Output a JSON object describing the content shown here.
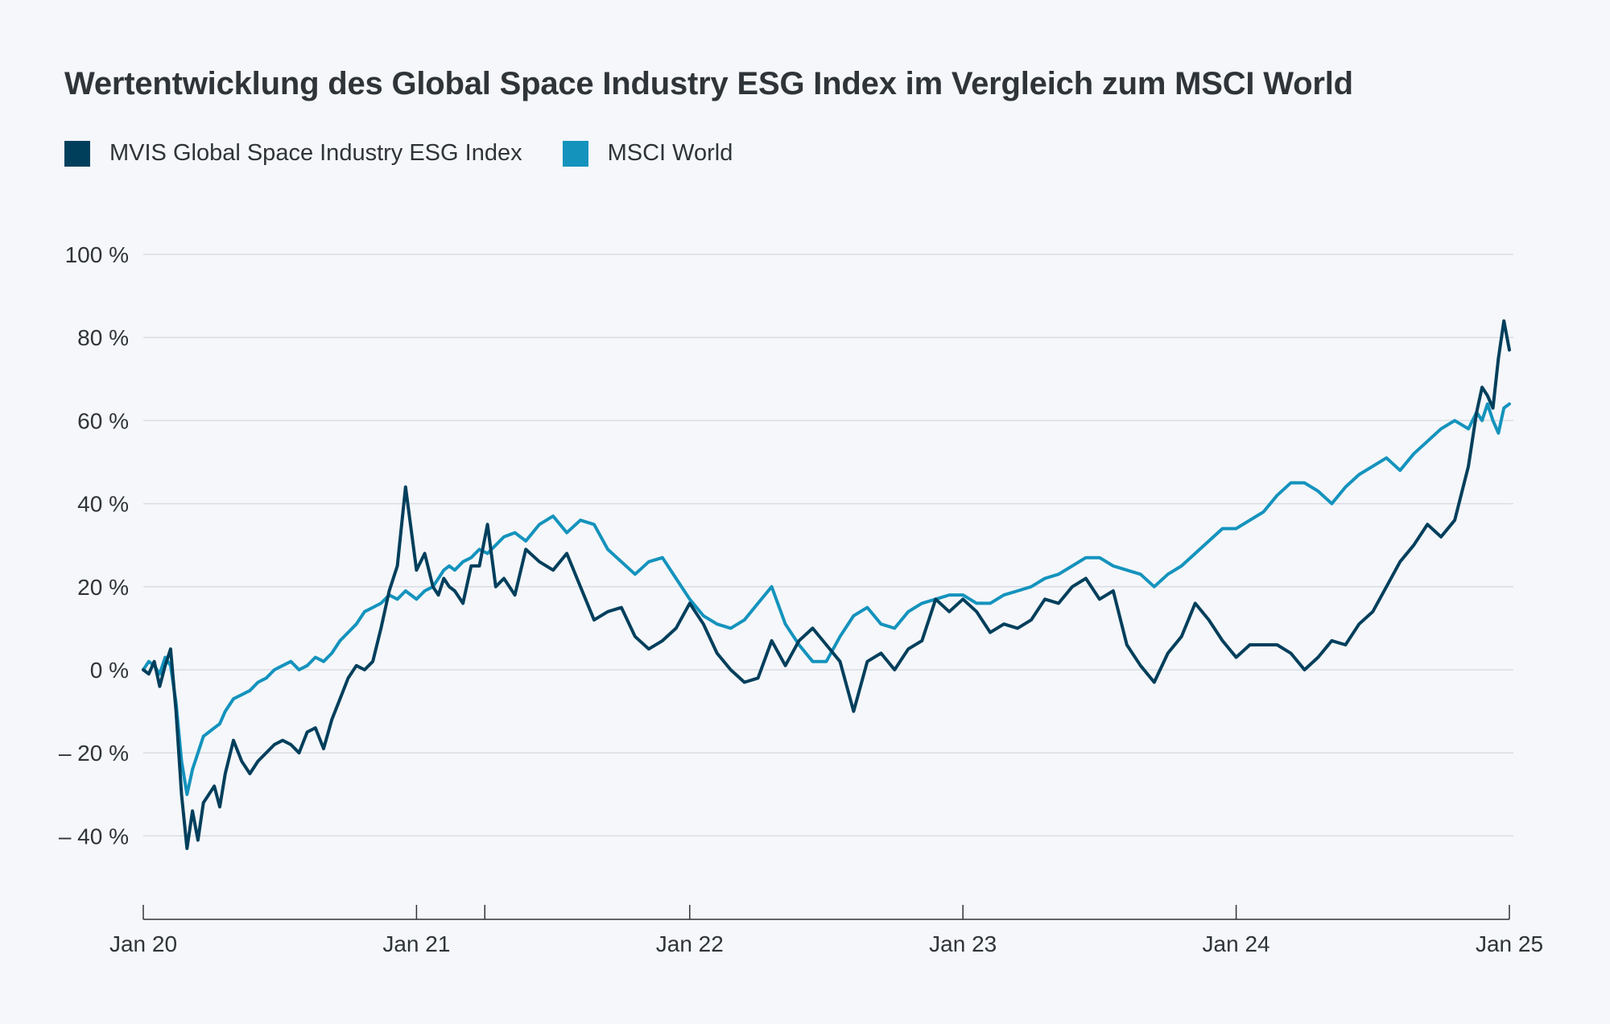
{
  "chart_data": {
    "type": "line",
    "title": "Wertentwicklung des Global Space Industry ESG Index im Vergleich zum MSCI World",
    "xlabel": "",
    "ylabel": "",
    "x_ticks": [
      "Jan 20",
      "Jan 21",
      "Jan 22",
      "Jan 23",
      "Jan 24",
      "Jan 25"
    ],
    "x_range": [
      2020.0,
      2025.0
    ],
    "y_ticks": [
      "100 %",
      "80 %",
      "60 %",
      "40 %",
      "20 %",
      "0 %",
      "– 20 %",
      "– 40 %"
    ],
    "y_tick_values": [
      100,
      80,
      60,
      40,
      20,
      0,
      -20,
      -40
    ],
    "ylim": [
      -58,
      100
    ],
    "grid": true,
    "legend_position": "top-left",
    "series": [
      {
        "name": "MVIS Global Space Industry ESG Index",
        "color": "#003f5c",
        "x": [
          2020.0,
          2020.02,
          2020.04,
          2020.06,
          2020.08,
          2020.1,
          2020.12,
          2020.14,
          2020.16,
          2020.18,
          2020.2,
          2020.22,
          2020.24,
          2020.26,
          2020.28,
          2020.3,
          2020.33,
          2020.36,
          2020.39,
          2020.42,
          2020.45,
          2020.48,
          2020.51,
          2020.54,
          2020.57,
          2020.6,
          2020.63,
          2020.66,
          2020.69,
          2020.72,
          2020.75,
          2020.78,
          2020.81,
          2020.84,
          2020.87,
          2020.9,
          2020.93,
          2020.96,
          2021.0,
          2021.03,
          2021.06,
          2021.08,
          2021.1,
          2021.12,
          2021.14,
          2021.17,
          2021.2,
          2021.23,
          2021.26,
          2021.29,
          2021.32,
          2021.36,
          2021.4,
          2021.45,
          2021.5,
          2021.55,
          2021.6,
          2021.65,
          2021.7,
          2021.75,
          2021.8,
          2021.85,
          2021.9,
          2021.95,
          2022.0,
          2022.05,
          2022.1,
          2022.15,
          2022.2,
          2022.25,
          2022.3,
          2022.35,
          2022.4,
          2022.45,
          2022.5,
          2022.55,
          2022.6,
          2022.65,
          2022.7,
          2022.75,
          2022.8,
          2022.85,
          2022.9,
          2022.95,
          2023.0,
          2023.05,
          2023.1,
          2023.15,
          2023.2,
          2023.25,
          2023.3,
          2023.35,
          2023.4,
          2023.45,
          2023.5,
          2023.55,
          2023.6,
          2023.65,
          2023.7,
          2023.75,
          2023.8,
          2023.85,
          2023.9,
          2023.95,
          2024.0,
          2024.05,
          2024.1,
          2024.15,
          2024.2,
          2024.25,
          2024.3,
          2024.35,
          2024.4,
          2024.45,
          2024.5,
          2024.55,
          2024.6,
          2024.65,
          2024.7,
          2024.75,
          2024.8,
          2024.85,
          2024.88,
          2024.9,
          2024.92,
          2024.94,
          2024.96,
          2024.98,
          2025.0
        ],
        "values": [
          0,
          -1,
          2,
          -4,
          1,
          5,
          -10,
          -30,
          -43,
          -34,
          -41,
          -32,
          -30,
          -28,
          -33,
          -25,
          -17,
          -22,
          -25,
          -22,
          -20,
          -18,
          -17,
          -18,
          -20,
          -15,
          -14,
          -19,
          -12,
          -7,
          -2,
          1,
          0,
          2,
          10,
          19,
          25,
          44,
          24,
          28,
          20,
          18,
          22,
          20,
          19,
          16,
          25,
          25,
          35,
          20,
          22,
          18,
          29,
          26,
          24,
          28,
          20,
          12,
          14,
          15,
          8,
          5,
          7,
          10,
          16,
          11,
          4,
          0,
          -3,
          -2,
          7,
          1,
          7,
          10,
          6,
          2,
          -10,
          2,
          4,
          0,
          5,
          7,
          17,
          14,
          17,
          14,
          9,
          11,
          10,
          12,
          17,
          16,
          20,
          22,
          17,
          19,
          6,
          1,
          -3,
          4,
          8,
          16,
          12,
          7,
          3,
          6,
          6,
          6,
          4,
          0,
          3,
          7,
          6,
          11,
          14,
          20,
          26,
          30,
          35,
          32,
          36,
          49,
          62,
          68,
          66,
          63,
          75,
          84,
          77
        ]
      },
      {
        "name": "MSCI World",
        "color": "#1493bd",
        "x": [
          2020.0,
          2020.02,
          2020.04,
          2020.06,
          2020.08,
          2020.1,
          2020.12,
          2020.14,
          2020.16,
          2020.18,
          2020.2,
          2020.22,
          2020.24,
          2020.26,
          2020.28,
          2020.3,
          2020.33,
          2020.36,
          2020.39,
          2020.42,
          2020.45,
          2020.48,
          2020.51,
          2020.54,
          2020.57,
          2020.6,
          2020.63,
          2020.66,
          2020.69,
          2020.72,
          2020.75,
          2020.78,
          2020.81,
          2020.84,
          2020.87,
          2020.9,
          2020.93,
          2020.96,
          2021.0,
          2021.03,
          2021.06,
          2021.08,
          2021.1,
          2021.12,
          2021.14,
          2021.17,
          2021.2,
          2021.23,
          2021.26,
          2021.29,
          2021.32,
          2021.36,
          2021.4,
          2021.45,
          2021.5,
          2021.55,
          2021.6,
          2021.65,
          2021.7,
          2021.75,
          2021.8,
          2021.85,
          2021.9,
          2021.95,
          2022.0,
          2022.05,
          2022.1,
          2022.15,
          2022.2,
          2022.25,
          2022.3,
          2022.35,
          2022.4,
          2022.45,
          2022.5,
          2022.55,
          2022.6,
          2022.65,
          2022.7,
          2022.75,
          2022.8,
          2022.85,
          2022.9,
          2022.95,
          2023.0,
          2023.05,
          2023.1,
          2023.15,
          2023.2,
          2023.25,
          2023.3,
          2023.35,
          2023.4,
          2023.45,
          2023.5,
          2023.55,
          2023.6,
          2023.65,
          2023.7,
          2023.75,
          2023.8,
          2023.85,
          2023.9,
          2023.95,
          2024.0,
          2024.05,
          2024.1,
          2024.15,
          2024.2,
          2024.25,
          2024.3,
          2024.35,
          2024.4,
          2024.45,
          2024.5,
          2024.55,
          2024.6,
          2024.65,
          2024.7,
          2024.75,
          2024.8,
          2024.85,
          2024.88,
          2024.9,
          2024.92,
          2024.94,
          2024.96,
          2024.98,
          2025.0
        ],
        "values": [
          0,
          2,
          1,
          -1,
          3,
          1,
          -8,
          -22,
          -30,
          -24,
          -20,
          -16,
          -15,
          -14,
          -13,
          -10,
          -7,
          -6,
          -5,
          -3,
          -2,
          0,
          1,
          2,
          0,
          1,
          3,
          2,
          4,
          7,
          9,
          11,
          14,
          15,
          16,
          18,
          17,
          19,
          17,
          19,
          20,
          22,
          24,
          25,
          24,
          26,
          27,
          29,
          28,
          30,
          32,
          33,
          31,
          35,
          37,
          33,
          36,
          35,
          29,
          26,
          23,
          26,
          27,
          22,
          17,
          13,
          11,
          10,
          12,
          16,
          20,
          11,
          6,
          2,
          2,
          8,
          13,
          15,
          11,
          10,
          14,
          16,
          17,
          18,
          18,
          16,
          16,
          18,
          19,
          20,
          22,
          23,
          25,
          27,
          27,
          25,
          24,
          23,
          20,
          23,
          25,
          28,
          31,
          34,
          34,
          36,
          38,
          42,
          45,
          45,
          43,
          40,
          44,
          47,
          49,
          51,
          48,
          52,
          55,
          58,
          60,
          58,
          62,
          60,
          64,
          60,
          57,
          63,
          64
        ]
      }
    ]
  }
}
